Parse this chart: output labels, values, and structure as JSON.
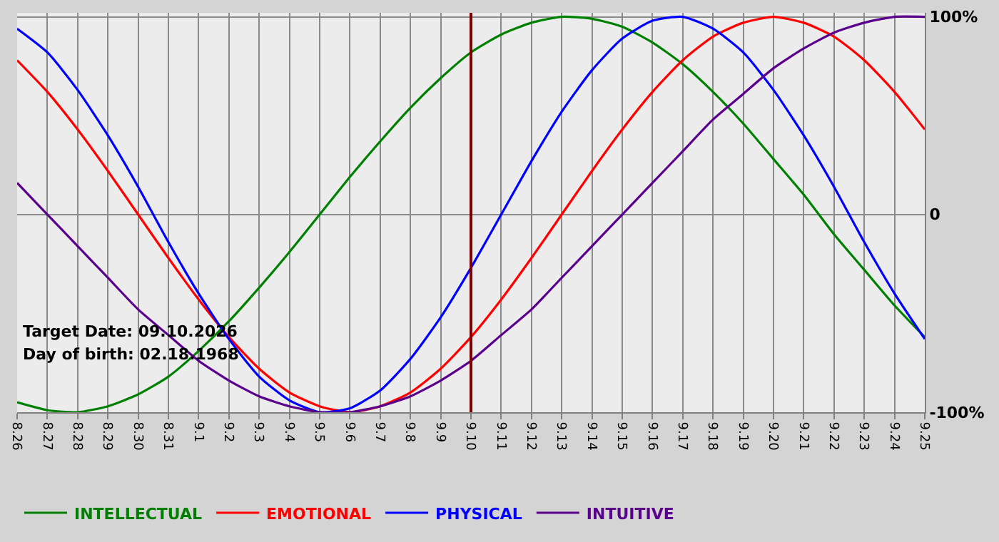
{
  "chart_data": {
    "type": "line",
    "categories": [
      "8.26",
      "8.27",
      "8.28",
      "8.29",
      "8.30",
      "8.31",
      "9.1",
      "9.2",
      "9.3",
      "9.4",
      "9.5",
      "9.6",
      "9.7",
      "9.8",
      "9.9",
      "9.10",
      "9.11",
      "9.12",
      "9.13",
      "9.14",
      "9.15",
      "9.16",
      "9.17",
      "9.18",
      "9.19",
      "9.20",
      "9.21",
      "9.22",
      "9.23",
      "9.24",
      "9.25"
    ],
    "series": [
      {
        "name": "INTELLECTUAL",
        "color": "#008000",
        "values": [
          -95,
          -99,
          -100,
          -97,
          -91,
          -82,
          -69,
          -54,
          -37,
          -19,
          0,
          19,
          37,
          54,
          69,
          82,
          91,
          97,
          100,
          99,
          95,
          87,
          76,
          62,
          46,
          28,
          10,
          -10,
          -28,
          -46,
          -62
        ]
      },
      {
        "name": "EMOTIONAL",
        "color": "#ff0000",
        "values": [
          78,
          62,
          43,
          22,
          0,
          -22,
          -43,
          -62,
          -78,
          -90,
          -97,
          -100,
          -97,
          -90,
          -78,
          -62,
          -43,
          -22,
          0,
          22,
          43,
          62,
          78,
          90,
          97,
          100,
          97,
          90,
          78,
          62,
          43
        ]
      },
      {
        "name": "PHYSICAL",
        "color": "#0000ff",
        "values": [
          94,
          82,
          63,
          40,
          14,
          -14,
          -40,
          -63,
          -82,
          -94,
          -100,
          -98,
          -89,
          -73,
          -52,
          -27,
          0,
          27,
          52,
          73,
          89,
          98,
          100,
          94,
          82,
          63,
          40,
          14,
          -14,
          -40,
          -63
        ]
      },
      {
        "name": "INTUITIVE",
        "color": "#5a008c",
        "values": [
          16,
          0,
          -16,
          -32,
          -48,
          -61,
          -74,
          -84,
          -92,
          -97,
          -100,
          -100,
          -97,
          -92,
          -84,
          -74,
          -61,
          -48,
          -32,
          -16,
          0,
          16,
          32,
          48,
          61,
          74,
          84,
          92,
          97,
          100,
          100
        ]
      }
    ],
    "ylim": [
      -100,
      102
    ],
    "yticks": [
      {
        "value": 100,
        "label": "100%"
      },
      0,
      {
        "value": -100,
        "label": "-100%"
      }
    ],
    "ref_lines": [
      {
        "axis": "x",
        "value": "9.10",
        "color": "#800000"
      }
    ],
    "annotations": [
      "Target Date: 09.10.2026",
      "Day of birth: 02.18.1968"
    ],
    "grid": true,
    "legend": "bottom",
    "marker": "none",
    "line_style": "solid"
  }
}
